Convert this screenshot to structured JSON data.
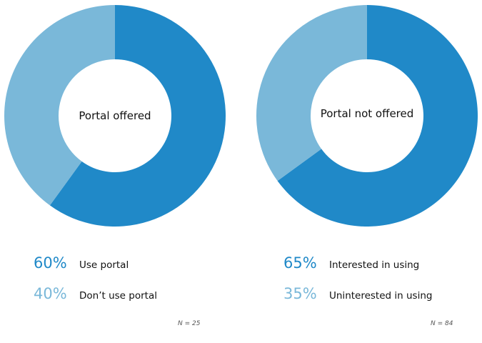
{
  "chart_data": [
    {
      "type": "pie",
      "title": "Portal offered",
      "categories": [
        "Use portal",
        "Don’t use portal"
      ],
      "values": [
        60,
        40
      ],
      "percent_labels": [
        "60%",
        "40%"
      ],
      "colors": [
        "#2089c8",
        "#7ab8d9"
      ],
      "note": "N = 25"
    },
    {
      "type": "pie",
      "title": "Portal not offered",
      "categories": [
        "Interested in using",
        "Uninterested in using"
      ],
      "values": [
        65,
        35
      ],
      "percent_labels": [
        "65%",
        "35%"
      ],
      "colors": [
        "#2089c8",
        "#7ab8d9"
      ],
      "note": "N = 84"
    }
  ]
}
